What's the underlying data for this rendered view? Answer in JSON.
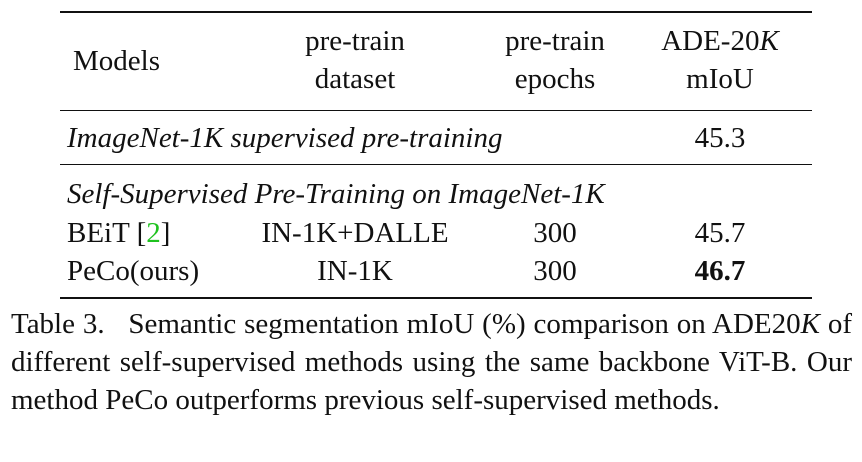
{
  "table": {
    "headers": {
      "models": "Models",
      "dataset_l1": "pre-train",
      "dataset_l2": "dataset",
      "epochs_l1": "pre-train",
      "epochs_l2": "epochs",
      "ade_l1_prefix": "ADE-20",
      "ade_l1_var": "K",
      "ade_l2": "mIoU"
    },
    "section1": {
      "label": "ImageNet-1K supervised pre-training",
      "miou": "45.3"
    },
    "section2": {
      "label": "Self-Supervised Pre-Training on ImageNet-1K",
      "rows": [
        {
          "model": "BEiT",
          "cite_open": " [",
          "cite_num": "2",
          "cite_close": "]",
          "dataset": "IN-1K+DALLE",
          "epochs": "300",
          "miou": "45.7"
        },
        {
          "model": "PeCo(ours)",
          "dataset": "IN-1K",
          "epochs": "300",
          "miou": "46.7"
        }
      ]
    }
  },
  "caption": {
    "label": "Table 3.",
    "text_a": "Semantic segmentation mIoU (%) comparison on ADE20",
    "var": "K",
    "text_b": " of different self-supervised methods using the same backbone ViT-B. Our method PeCo outperforms previous self-supervised methods."
  }
}
